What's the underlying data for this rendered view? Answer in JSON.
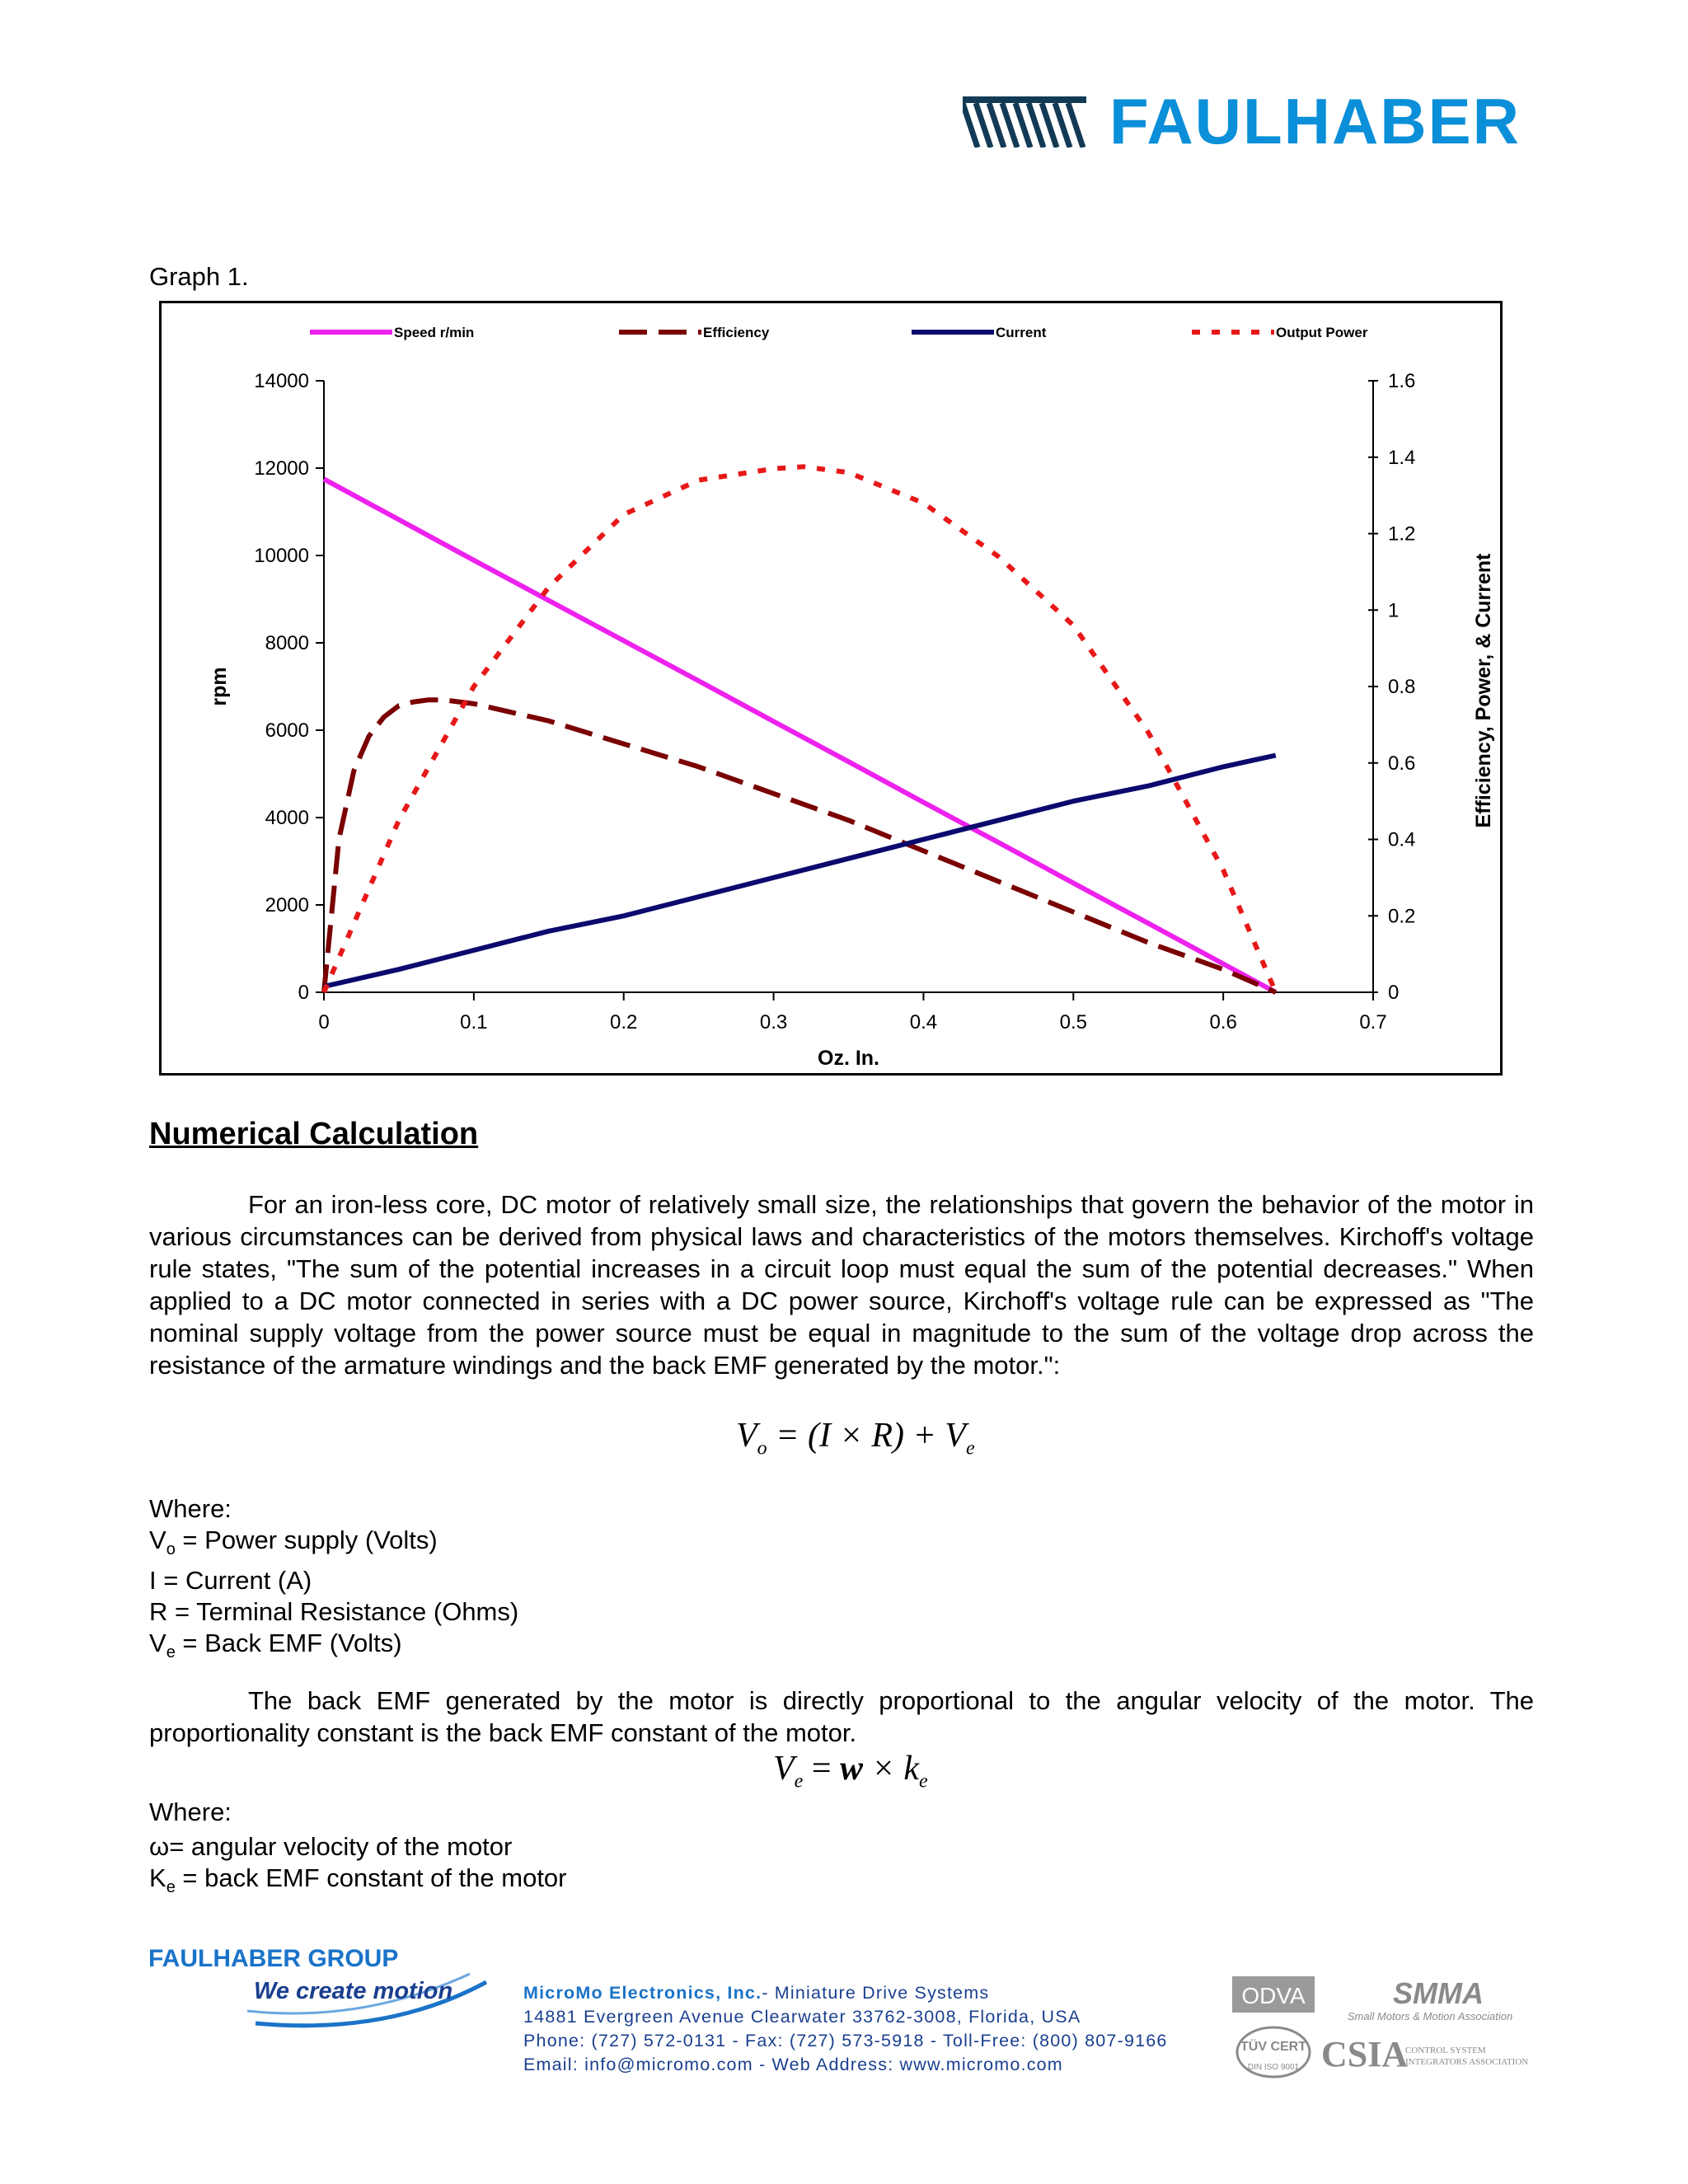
{
  "header": {
    "brand": "FAULHABER",
    "brand_color": "#0a8fd8"
  },
  "graph_caption": "Graph 1.",
  "chart_data": {
    "type": "line",
    "title": "",
    "xlabel": "Oz. In.",
    "ylabel_left": "rpm",
    "ylabel_right": "Efficiency, Power, & Current",
    "xlim": [
      0,
      0.7
    ],
    "ylim_left": [
      0,
      14000
    ],
    "ylim_right": [
      0,
      1.6
    ],
    "x_ticks": [
      "0",
      "0.1",
      "0.2",
      "0.3",
      "0.4",
      "0.5",
      "0.6",
      "0.7"
    ],
    "y_left_ticks": [
      "0",
      "2000",
      "4000",
      "6000",
      "8000",
      "10000",
      "12000",
      "14000"
    ],
    "y_right_ticks": [
      "0",
      "0.2",
      "0.4",
      "0.6",
      "0.8",
      "1",
      "1.2",
      "1.4",
      "1.6"
    ],
    "legend_position": "top",
    "grid": false,
    "series": [
      {
        "name": "Speed r/min",
        "axis": "left",
        "color": "#ee22ee",
        "style": "solid",
        "x": [
          0,
          0.05,
          0.1,
          0.15,
          0.2,
          0.25,
          0.3,
          0.35,
          0.4,
          0.45,
          0.5,
          0.55,
          0.6,
          0.635
        ],
        "y": [
          11750,
          10820,
          9890,
          8970,
          8050,
          7130,
          6200,
          5280,
          4350,
          3430,
          2500,
          1580,
          650,
          0
        ]
      },
      {
        "name": "Efficiency",
        "axis": "right",
        "color": "#7a0000",
        "style": "longdash",
        "x": [
          0,
          0.005,
          0.01,
          0.02,
          0.03,
          0.04,
          0.05,
          0.06,
          0.07,
          0.08,
          0.09,
          0.1,
          0.15,
          0.2,
          0.25,
          0.3,
          0.35,
          0.4,
          0.45,
          0.5,
          0.55,
          0.6,
          0.635
        ],
        "y": [
          0,
          0.2,
          0.4,
          0.58,
          0.67,
          0.72,
          0.75,
          0.76,
          0.765,
          0.765,
          0.76,
          0.755,
          0.71,
          0.65,
          0.59,
          0.52,
          0.45,
          0.37,
          0.29,
          0.21,
          0.13,
          0.06,
          0
        ]
      },
      {
        "name": "Current",
        "axis": "right",
        "color": "#0a0a6e",
        "style": "solid",
        "x": [
          0,
          0.05,
          0.1,
          0.15,
          0.2,
          0.25,
          0.3,
          0.35,
          0.4,
          0.45,
          0.5,
          0.55,
          0.6,
          0.635
        ],
        "y": [
          0.015,
          0.06,
          0.11,
          0.16,
          0.2,
          0.25,
          0.3,
          0.35,
          0.4,
          0.45,
          0.5,
          0.54,
          0.59,
          0.62
        ]
      },
      {
        "name": "Output Power",
        "axis": "right",
        "color": "#e81818",
        "style": "dotted",
        "x": [
          0,
          0.05,
          0.1,
          0.15,
          0.2,
          0.25,
          0.3,
          0.32,
          0.35,
          0.4,
          0.45,
          0.5,
          0.55,
          0.6,
          0.635
        ],
        "y": [
          0,
          0.45,
          0.8,
          1.06,
          1.25,
          1.34,
          1.37,
          1.375,
          1.36,
          1.28,
          1.14,
          0.96,
          0.68,
          0.32,
          0
        ]
      }
    ]
  },
  "section_heading": "Numerical Calculation",
  "paragraph_1": "For an iron-less core, DC motor of relatively small size, the relationships that govern the behavior of the motor in various circumstances can be derived from physical laws and characteristics of the motors themselves. Kirchoff's voltage rule states, \"The sum of the potential increases in a circuit loop must equal the sum of the potential decreases.\" When applied to a DC motor connected in series with a DC power source, Kirchoff's voltage rule can be expressed as \"The nominal supply voltage from the power source must be equal in magnitude to the sum of the voltage drop across the resistance of the armature windings and the back EMF generated by the motor.\":",
  "formula_1": {
    "lhs": "V",
    "lhs_sub": "o",
    "mid": " = (I × R) + V",
    "rhs_sub": "e"
  },
  "where_label": "Where:",
  "definitions_1": [
    {
      "sym": "V",
      "sub": "o",
      "text": " = Power supply (Volts)"
    },
    {
      "sym": "I",
      "sub": "",
      "text": " = Current (A)"
    },
    {
      "sym": "R",
      "sub": "",
      "text": " = Terminal Resistance (Ohms)"
    },
    {
      "sym": "V",
      "sub": "e",
      "text": " = Back EMF (Volts)"
    }
  ],
  "paragraph_2": "The back EMF generated by the motor is directly proportional to the angular velocity of the motor. The proportionality constant is the back EMF constant of the motor.",
  "formula_2": {
    "lhs": "V",
    "lhs_sub": "e",
    "mid": " = ",
    "w": "w",
    "times": " × k",
    "rhs_sub": "e"
  },
  "definitions_2": [
    {
      "sym": "ω",
      "sub": "",
      "text": "= angular velocity of the motor"
    },
    {
      "sym": "K",
      "sub": "e",
      "text": " = back EMF constant of the motor"
    }
  ],
  "footer": {
    "group_name": "FAULHABER GROUP",
    "slogan": "We create motion",
    "company": "MicroMo Electronics, Inc.",
    "company_desc": "- Miniature Drive Systems",
    "address": "14881 Evergreen Avenue Clearwater 33762-3008, Florida, USA",
    "phone": "Phone: (727) 572-0131 - Fax: (727) 573-5918 - Toll-Free: (800) 807-9166",
    "email": "Email: info@micromo.com - Web Address: www.micromo.com",
    "logos": {
      "odva": "ODVA",
      "smma": "SMMA",
      "smma_caption": "Small Motors & Motion Association",
      "tuv": "TÜV CERT",
      "din": "DIN ISO 9001",
      "csia": "CSIA",
      "csia_caption_1": "CONTROL SYSTEM",
      "csia_caption_2": "INTEGRATORS ASSOCIATION"
    }
  }
}
